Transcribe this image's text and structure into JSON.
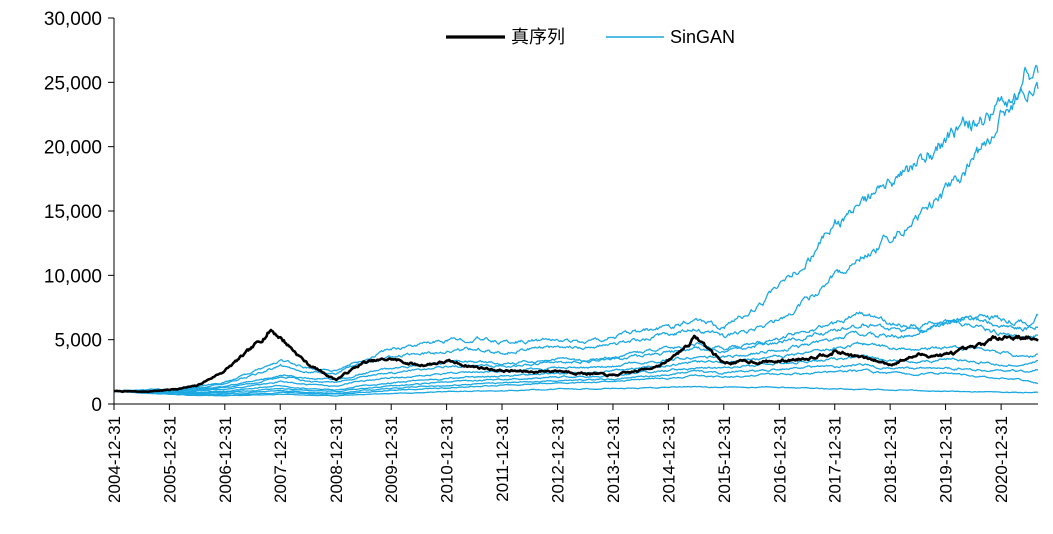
{
  "chart_data": {
    "type": "line",
    "title": "",
    "xlabel": "",
    "ylabel": "",
    "ylim": [
      0,
      30000
    ],
    "y_ticks": [
      "0",
      "5,000",
      "10,000",
      "15,000",
      "20,000",
      "25,000",
      "30,000"
    ],
    "x_ticks": [
      "2004-12-31",
      "2005-12-31",
      "2006-12-31",
      "2007-12-31",
      "2008-12-31",
      "2009-12-31",
      "2010-12-31",
      "2011-12-31",
      "2012-12-31",
      "2013-12-31",
      "2014-12-31",
      "2015-12-31",
      "2016-12-31",
      "2017-12-31",
      "2018-12-31",
      "2019-12-31",
      "2020-12-31"
    ],
    "legend_position": "top-center",
    "grid": false,
    "x": [
      "2004-12-31",
      "2005-06-30",
      "2005-12-31",
      "2006-06-30",
      "2006-12-31",
      "2007-06-30",
      "2007-10-31",
      "2007-12-31",
      "2008-06-30",
      "2008-12-31",
      "2009-06-30",
      "2009-12-31",
      "2010-06-30",
      "2010-12-31",
      "2011-06-30",
      "2011-12-31",
      "2012-06-30",
      "2012-12-31",
      "2013-06-30",
      "2013-12-31",
      "2014-06-30",
      "2014-12-31",
      "2015-06-30",
      "2015-12-31",
      "2016-06-30",
      "2016-12-31",
      "2017-06-30",
      "2017-12-31",
      "2018-06-30",
      "2018-12-31",
      "2019-06-30",
      "2019-12-31",
      "2020-06-30",
      "2020-12-31",
      "2021-06-30",
      "2021-08-31"
    ],
    "series": [
      {
        "name": "真序列",
        "color": "#000000",
        "values": [
          1000,
          950,
          1100,
          1400,
          2600,
          4300,
          5800,
          5200,
          3100,
          1900,
          3200,
          3500,
          3000,
          3300,
          2900,
          2600,
          2500,
          2600,
          2400,
          2200,
          2600,
          3300,
          5200,
          3200,
          3300,
          3300,
          3600,
          4100,
          3600,
          3100,
          3800,
          3800,
          4300,
          5300,
          5200,
          4800
        ]
      },
      {
        "name": "SinGAN",
        "color": "#1ca9e1",
        "values": [
          1000,
          1100,
          1150,
          1300,
          1700,
          2500,
          3000,
          3400,
          2800,
          2600,
          3500,
          4300,
          4600,
          4900,
          5100,
          4800,
          4900,
          5000,
          4800,
          5200,
          5600,
          6000,
          6700,
          6000,
          7200,
          9000,
          11000,
          14000,
          15500,
          17000,
          18500,
          20500,
          22000,
          23000,
          26000,
          26000
        ]
      },
      {
        "color": "#1ca9e1",
        "values": [
          1000,
          1050,
          1100,
          1250,
          1600,
          2200,
          2700,
          3000,
          2500,
          2400,
          3200,
          3700,
          3900,
          4100,
          4300,
          4000,
          4300,
          4500,
          4400,
          4600,
          5000,
          5400,
          5800,
          5300,
          5700,
          6500,
          8000,
          10000,
          11500,
          13000,
          14500,
          16500,
          19000,
          22000,
          24500,
          24500
        ]
      },
      {
        "color": "#1ca9e1",
        "values": [
          1000,
          1000,
          1050,
          1150,
          1400,
          1800,
          2100,
          2300,
          2000,
          1900,
          2400,
          2800,
          3000,
          3200,
          3300,
          3100,
          3300,
          3500,
          3400,
          3600,
          4000,
          4300,
          4600,
          4300,
          4700,
          5100,
          5700,
          6200,
          7200,
          6200,
          6100,
          6400,
          6800,
          6600,
          6300,
          6900
        ]
      },
      {
        "color": "#1ca9e1",
        "values": [
          1000,
          980,
          1000,
          1100,
          1300,
          1600,
          1900,
          2100,
          1800,
          1700,
          2100,
          2400,
          2700,
          2900,
          3000,
          2900,
          3100,
          3300,
          3300,
          3500,
          3700,
          4000,
          4300,
          4100,
          4400,
          4800,
          5200,
          5700,
          6300,
          5800,
          5700,
          6300,
          6500,
          6200,
          5900,
          6200
        ]
      },
      {
        "color": "#1ca9e1",
        "values": [
          1000,
          960,
          950,
          1000,
          1150,
          1400,
          1600,
          1750,
          1500,
          1400,
          1800,
          2000,
          2200,
          2400,
          2500,
          2500,
          2700,
          2800,
          2800,
          3000,
          3200,
          3400,
          3700,
          3600,
          3900,
          4200,
          4600,
          5000,
          5600,
          5200,
          5500,
          6400,
          6100,
          5500,
          5100,
          5400
        ]
      },
      {
        "color": "#1ca9e1",
        "values": [
          1000,
          950,
          900,
          900,
          1000,
          1200,
          1350,
          1400,
          1200,
          1100,
          1400,
          1600,
          1800,
          2000,
          2100,
          2200,
          2300,
          2400,
          2400,
          2600,
          2800,
          3000,
          3300,
          3200,
          3500,
          3700,
          4000,
          4300,
          4700,
          4400,
          4200,
          4500,
          4300,
          4000,
          3600,
          3900
        ]
      },
      {
        "color": "#1ca9e1",
        "values": [
          1000,
          930,
          870,
          850,
          900,
          1050,
          1150,
          1200,
          1050,
          980,
          1200,
          1400,
          1550,
          1700,
          1800,
          1900,
          2000,
          2100,
          2100,
          2200,
          2400,
          2600,
          2800,
          2800,
          3000,
          3200,
          3300,
          3500,
          3700,
          3400,
          3300,
          3500,
          3300,
          3100,
          3000,
          3300
        ]
      },
      {
        "color": "#1ca9e1",
        "values": [
          1000,
          900,
          820,
          780,
          800,
          900,
          1000,
          1050,
          900,
          850,
          1050,
          1200,
          1350,
          1450,
          1550,
          1650,
          1750,
          1850,
          1850,
          1950,
          2100,
          2300,
          2500,
          2400,
          2600,
          2700,
          2800,
          2900,
          3000,
          2800,
          2700,
          2800,
          2700,
          2600,
          2500,
          2700
        ]
      },
      {
        "color": "#1ca9e1",
        "values": [
          1000,
          880,
          780,
          720,
          700,
          780,
          850,
          900,
          800,
          750,
          900,
          1050,
          1150,
          1250,
          1350,
          1450,
          1550,
          1650,
          1650,
          1750,
          1900,
          2000,
          2200,
          2100,
          2200,
          2300,
          2400,
          2500,
          2600,
          2400,
          2300,
          2400,
          2200,
          2000,
          1800,
          1600
        ]
      },
      {
        "color": "#1ca9e1",
        "values": [
          1000,
          870,
          760,
          680,
          640,
          680,
          720,
          760,
          680,
          650,
          740,
          820,
          880,
          940,
          1000,
          1050,
          1100,
          1150,
          1150,
          1200,
          1250,
          1300,
          1350,
          1300,
          1300,
          1300,
          1250,
          1200,
          1150,
          1100,
          1050,
          1000,
          950,
          900,
          900,
          900
        ]
      }
    ]
  }
}
